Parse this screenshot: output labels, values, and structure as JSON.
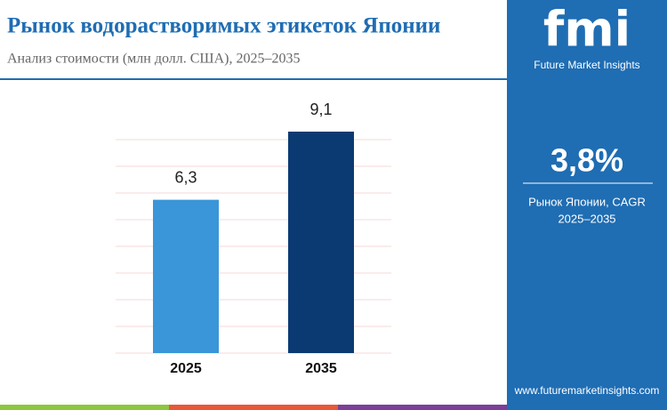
{
  "chart_data": {
    "type": "bar",
    "title": "Рынок водорастворимых этикеток Японии",
    "subtitle": "Анализ стоимости (млн долл. США), 2025‒2035",
    "categories": [
      "2025",
      "2035"
    ],
    "values": [
      6.3,
      9.1
    ],
    "value_labels": [
      "6,3",
      "9,1"
    ],
    "colors": [
      "#3a96d8",
      "#0b3a72"
    ]
  },
  "sidebar": {
    "logo": "fmi",
    "brand": "Future Market Insights",
    "cagr": {
      "value": 3.8,
      "label": "3,8%"
    },
    "caption": "Рынок Японии, CAGR",
    "period": "2025‒2035",
    "url": "www.futuremarketinsights.com"
  }
}
